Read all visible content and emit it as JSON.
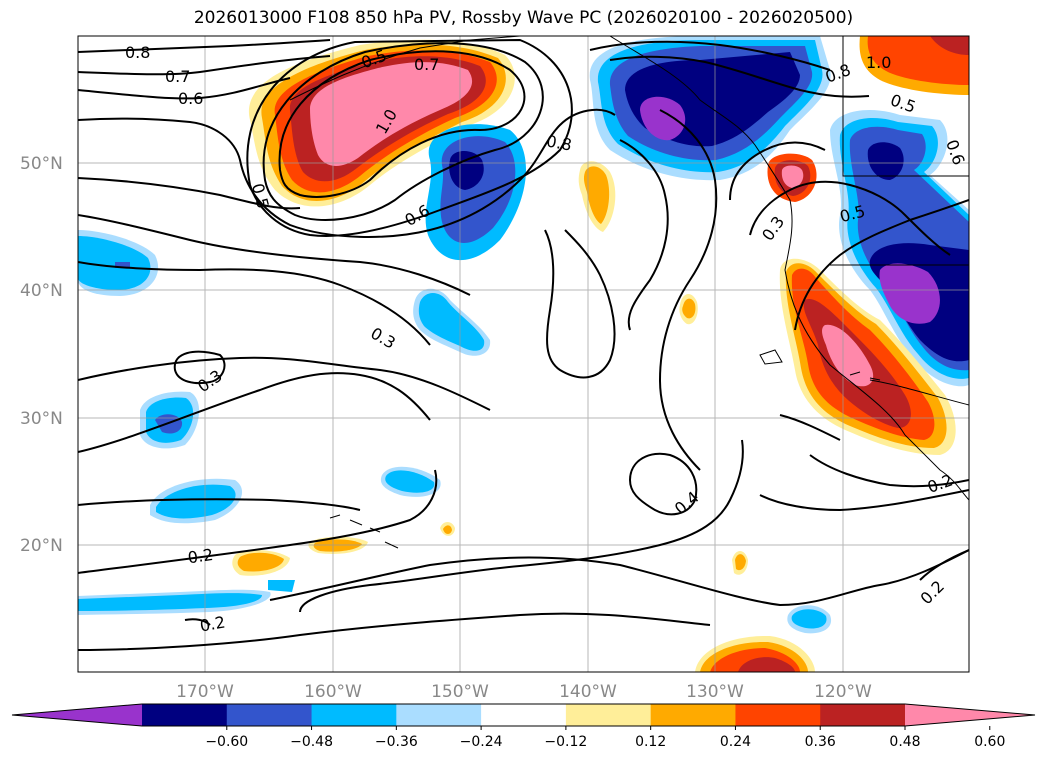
{
  "title": "2026013000 F108 850 hPa PV, Rossby Wave PC (2026020100 - 2026020500)",
  "map": {
    "lat_labels": [
      "50°N",
      "40°N",
      "30°N",
      "20°N"
    ],
    "lon_labels": [
      "170°W",
      "160°W",
      "150°W",
      "140°W",
      "130°W",
      "120°W"
    ],
    "contour_labels": [
      "0.8",
      "0.7",
      "0.6",
      "0.5",
      "1.0",
      "0.7",
      "0.8",
      "0.6",
      "0.5",
      "0.3",
      "0.3",
      "0.4",
      "0.2",
      "0.2",
      "1.0",
      "0.8",
      "0.5",
      "0.6",
      "0.5",
      "0.3",
      "0.2",
      "0.2"
    ]
  },
  "colorbar": {
    "ticks": [
      "−0.60",
      "−0.48",
      "−0.36",
      "−0.24",
      "−0.12",
      "0.12",
      "0.24",
      "0.36",
      "0.48",
      "0.60"
    ],
    "colors": [
      "#9933cc",
      "#000080",
      "#3355cc",
      "#00bbff",
      "#aaddff",
      "#ffffff",
      "#ffee99",
      "#ffaa00",
      "#ff4400",
      "#bb2222",
      "#ff88aa"
    ]
  }
}
